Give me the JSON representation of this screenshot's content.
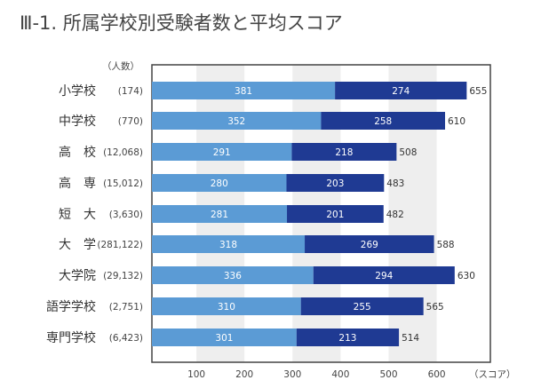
{
  "title": "Ⅲ-1. 所属学校別受験者数と平均スコア",
  "chart_data": {
    "type": "bar",
    "stacked": true,
    "orientation": "horizontal",
    "title": "Ⅲ-1. 所属学校別受験者数と平均スコア",
    "count_label": "（人数）",
    "xlabel": "（スコア）",
    "xlim": [
      0,
      700
    ],
    "xticks": [
      100,
      200,
      300,
      400,
      500,
      600
    ],
    "categories": [
      "小学校",
      "中学校",
      "高　校",
      "高　専",
      "短　大",
      "大　学",
      "大学院",
      "語学学校",
      "専門学校"
    ],
    "counts": [
      "(174)",
      "(770)",
      "(12,068)",
      "(15,012)",
      "(3,630)",
      "(281,122)",
      "(29,132)",
      "(2,751)",
      "(6,423)"
    ],
    "series": [
      {
        "name": "segment-1",
        "color": "#5b9bd5",
        "values": [
          381,
          352,
          291,
          280,
          281,
          318,
          336,
          310,
          301
        ]
      },
      {
        "name": "segment-2",
        "color": "#1f3a93",
        "values": [
          274,
          258,
          218,
          203,
          201,
          269,
          294,
          255,
          213
        ]
      }
    ],
    "totals": [
      655,
      610,
      508,
      483,
      482,
      588,
      630,
      565,
      514
    ]
  }
}
